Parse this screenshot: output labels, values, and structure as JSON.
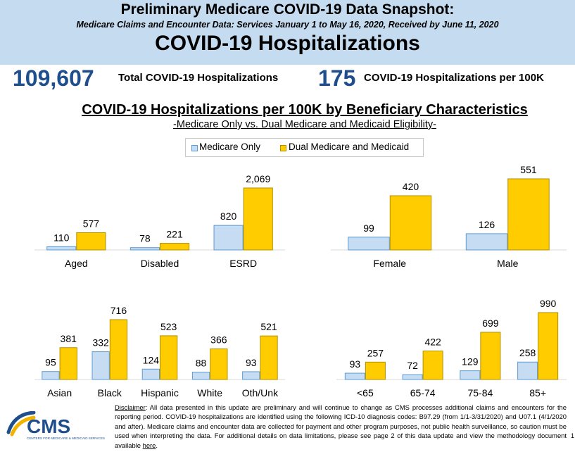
{
  "header": {
    "title": "Preliminary Medicare COVID-19 Data Snapshot:",
    "subtitle": "Medicare Claims and Encounter Data: Services January 1 to May 16, 2020, Received by June 11, 2020",
    "heading": "COVID-19 Hospitalizations"
  },
  "stats": {
    "total_value": "109,607",
    "total_label": "Total COVID-19 Hospitalizations",
    "rate_value": "175",
    "rate_label": "COVID-19 Hospitalizations per 100K"
  },
  "section": {
    "title": "COVID-19 Hospitalizations per 100K by Beneficiary Characteristics",
    "subtitle": "-Medicare Only vs. Dual Medicare and Medicaid Eligibility-"
  },
  "legend": {
    "medicare_only": "Medicare Only",
    "dual": "Dual Medicare and Medicaid"
  },
  "colors": {
    "medicare_only": "#c6dcf3",
    "medicare_only_border": "#5b9bd5",
    "dual": "#ffcc00",
    "dual_border": "#b38f00",
    "stat_value": "#1f4e8c",
    "header_bg": "#c5dcf0"
  },
  "chart_data": [
    {
      "type": "bar",
      "categories": [
        "Aged",
        "Disabled",
        "ESRD"
      ],
      "series": [
        {
          "name": "Medicare Only",
          "values": [
            110,
            78,
            820
          ]
        },
        {
          "name": "Dual Medicare and Medicaid",
          "values": [
            577,
            221,
            2069
          ]
        }
      ],
      "value_labels": [
        [
          "110",
          "78",
          "820"
        ],
        [
          "577",
          "221",
          "2,069"
        ]
      ]
    },
    {
      "type": "bar",
      "categories": [
        "Female",
        "Male"
      ],
      "series": [
        {
          "name": "Medicare Only",
          "values": [
            99,
            126
          ]
        },
        {
          "name": "Dual Medicare and Medicaid",
          "values": [
            420,
            551
          ]
        }
      ],
      "value_labels": [
        [
          "99",
          "126"
        ],
        [
          "420",
          "551"
        ]
      ]
    },
    {
      "type": "bar",
      "categories": [
        "Asian",
        "Black",
        "Hispanic",
        "White",
        "Oth/Unk"
      ],
      "series": [
        {
          "name": "Medicare Only",
          "values": [
            95,
            332,
            124,
            88,
            93
          ]
        },
        {
          "name": "Dual Medicare and Medicaid",
          "values": [
            381,
            716,
            523,
            366,
            521
          ]
        }
      ],
      "value_labels": [
        [
          "95",
          "332",
          "124",
          "88",
          "93"
        ],
        [
          "381",
          "716",
          "523",
          "366",
          "521"
        ]
      ]
    },
    {
      "type": "bar",
      "categories": [
        "<65",
        "65-74",
        "75-84",
        "85+"
      ],
      "series": [
        {
          "name": "Medicare Only",
          "values": [
            93,
            72,
            129,
            258
          ]
        },
        {
          "name": "Dual Medicare and Medicaid",
          "values": [
            257,
            422,
            699,
            990
          ]
        }
      ],
      "value_labels": [
        [
          "93",
          "72",
          "129",
          "258"
        ],
        [
          "257",
          "422",
          "699",
          "990"
        ]
      ]
    }
  ],
  "disclaimer": {
    "label": "Disclaimer",
    "text": ": All data presented in this update are preliminary and will continue to change as CMS processes additional claims and encounters for the reporting period.  COVID-19 hospitalizations are identified using the following ICD-10 diagnosis codes: B97.29 (from 1/1-3/31/2020) and U07.1 (4/1/2020 and after). Medicare claims and encounter data are collected for payment and other program purposes, not public health surveillance, so caution must be used when interpreting the data.  For additional details on data limitations, please see page 2 of this data update and view the methodology document available ",
    "link": "here",
    "end": "."
  },
  "logo": {
    "text": "CMS",
    "tagline": "CENTERS FOR MEDICARE & MEDICAID SERVICES"
  },
  "page_number": "1"
}
